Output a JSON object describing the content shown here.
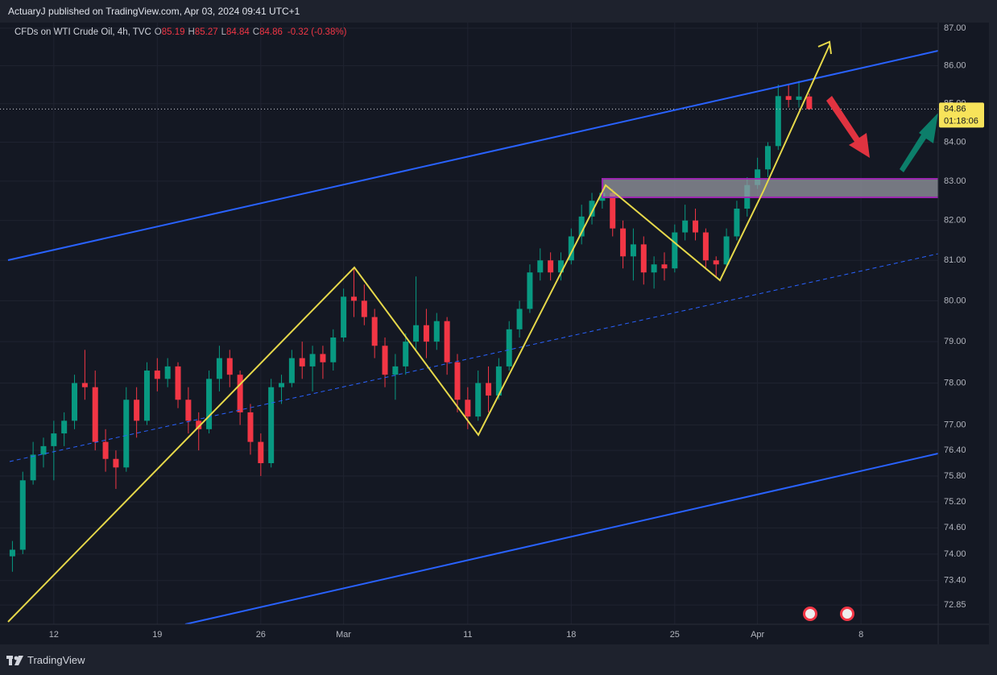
{
  "header": {
    "attribution": "ActuaryJ published on TradingView.com, Apr 03, 2024 09:41 UTC+1"
  },
  "legend": {
    "symbol": "CFDs on WTI Crude Oil, 4h, TVC",
    "ohlc": [
      {
        "key": "O",
        "value": "85.19"
      },
      {
        "key": "H",
        "value": "85.27"
      },
      {
        "key": "L",
        "value": "84.84"
      },
      {
        "key": "C",
        "value": "84.86"
      }
    ],
    "change": "-0.32 (-0.38%)"
  },
  "chart_data": {
    "type": "candlestick",
    "log": true,
    "up_color": "#089981",
    "down_color": "#f23645",
    "ylim": [
      72.42,
      87.15
    ],
    "yticks": [
      {
        "value": 87,
        "label": "87.00"
      },
      {
        "value": 86,
        "label": "86.00"
      },
      {
        "value": 85,
        "label": "85.00"
      },
      {
        "value": 84,
        "label": "84.00"
      },
      {
        "value": 83,
        "label": "83.00"
      },
      {
        "value": 82,
        "label": "82.00"
      },
      {
        "value": 81,
        "label": "81.00"
      },
      {
        "value": 80,
        "label": "80.00"
      },
      {
        "value": 79,
        "label": "79.00"
      },
      {
        "value": 78,
        "label": "78.00"
      },
      {
        "value": 77,
        "label": "77.00"
      },
      {
        "value": 76.4,
        "label": "76.40"
      },
      {
        "value": 75.8,
        "label": "75.80"
      },
      {
        "value": 75.2,
        "label": "75.20"
      },
      {
        "value": 74.6,
        "label": "74.60"
      },
      {
        "value": 74,
        "label": "74.00"
      },
      {
        "value": 73.4,
        "label": "73.40"
      },
      {
        "value": 72.85,
        "label": "72.85"
      }
    ],
    "categories": [
      null,
      null,
      null,
      null,
      "12",
      null,
      null,
      null,
      null,
      null,
      null,
      null,
      null,
      null,
      "19",
      null,
      null,
      null,
      null,
      null,
      null,
      null,
      null,
      null,
      "26",
      null,
      null,
      null,
      null,
      null,
      null,
      null,
      "Mar",
      null,
      null,
      null,
      null,
      null,
      null,
      null,
      null,
      null,
      null,
      null,
      "11",
      null,
      null,
      null,
      null,
      null,
      null,
      null,
      null,
      null,
      "18",
      null,
      null,
      null,
      null,
      null,
      null,
      null,
      null,
      null,
      "25",
      null,
      null,
      null,
      null,
      null,
      null,
      null,
      "Apr",
      null,
      null,
      null,
      null,
      null,
      null,
      null,
      null,
      null,
      "8",
      null,
      null,
      null,
      null,
      null,
      null
    ],
    "open": [
      73.95,
      74.1,
      75.7,
      76.3,
      76.5,
      76.8,
      77.1,
      78.0,
      77.9,
      76.6,
      76.2,
      76.0,
      77.6,
      77.1,
      78.3,
      78.1,
      78.4,
      77.6,
      77.1,
      76.9,
      78.1,
      78.6,
      78.2,
      77.3,
      76.6,
      76.1,
      77.9,
      78.0,
      78.6,
      78.4,
      78.7,
      78.5,
      79.1,
      80.1,
      80.0,
      79.6,
      78.9,
      78.2,
      78.4,
      79.0,
      79.4,
      79.0,
      79.5,
      78.5,
      77.6,
      77.2,
      78.0,
      77.7,
      78.4,
      79.3,
      79.8,
      80.7,
      81.0,
      80.7,
      81.0,
      81.6,
      82.1,
      82.5,
      82.7,
      81.8,
      81.1,
      81.4,
      80.7,
      80.9,
      80.8,
      81.7,
      82.0,
      81.7,
      81.0,
      80.9,
      81.6,
      82.3,
      82.9,
      83.3,
      83.9,
      85.2,
      85.1,
      85.19,
      null,
      null,
      null,
      null,
      null,
      null,
      null,
      null,
      null,
      null,
      null
    ],
    "high": [
      74.3,
      75.9,
      76.6,
      76.7,
      77.1,
      77.3,
      78.2,
      78.8,
      78.3,
      76.9,
      76.4,
      77.9,
      77.9,
      78.5,
      78.6,
      78.6,
      78.5,
      77.9,
      77.3,
      78.3,
      78.9,
      78.8,
      78.3,
      77.5,
      76.8,
      78.1,
      78.2,
      78.8,
      79.0,
      78.9,
      78.9,
      79.3,
      80.3,
      80.8,
      80.4,
      79.8,
      79.1,
      78.7,
      79.2,
      80.6,
      79.8,
      79.7,
      79.6,
      78.7,
      77.9,
      78.3,
      78.4,
      78.6,
      79.5,
      80.0,
      80.9,
      81.3,
      81.2,
      81.2,
      81.8,
      82.4,
      82.7,
      83.0,
      82.8,
      82.0,
      81.8,
      81.6,
      81.1,
      81.2,
      81.9,
      82.4,
      82.3,
      81.8,
      81.1,
      81.8,
      82.5,
      83.1,
      83.6,
      84.0,
      85.5,
      85.5,
      85.6,
      85.27,
      null,
      null,
      null,
      null,
      null,
      null,
      null,
      null,
      null,
      null,
      null
    ],
    "low": [
      73.6,
      74.0,
      75.6,
      76.0,
      75.7,
      76.5,
      76.9,
      77.6,
      76.4,
      75.9,
      75.5,
      75.9,
      76.7,
      77.0,
      77.8,
      77.9,
      77.4,
      76.8,
      76.4,
      76.8,
      77.8,
      77.9,
      77.0,
      76.3,
      75.8,
      76.0,
      77.5,
      77.9,
      78.1,
      77.8,
      78.1,
      78.3,
      79.0,
      79.6,
      79.4,
      78.6,
      77.9,
      77.6,
      78.2,
      78.8,
      78.6,
      78.8,
      78.2,
      77.3,
      76.9,
      77.1,
      77.3,
      77.6,
      78.3,
      79.1,
      79.7,
      80.5,
      80.5,
      80.5,
      80.9,
      81.4,
      81.9,
      82.3,
      81.6,
      80.8,
      80.5,
      80.4,
      80.3,
      80.5,
      80.7,
      81.5,
      81.5,
      80.8,
      80.6,
      80.8,
      81.5,
      82.1,
      82.8,
      83.1,
      83.8,
      84.9,
      84.9,
      84.84,
      null,
      null,
      null,
      null,
      null,
      null,
      null,
      null,
      null,
      null,
      null
    ],
    "close": [
      74.1,
      75.7,
      76.3,
      76.5,
      76.8,
      77.1,
      78.0,
      77.9,
      76.6,
      76.2,
      76.0,
      77.6,
      77.1,
      78.3,
      78.1,
      78.4,
      77.6,
      77.1,
      76.9,
      78.1,
      78.6,
      78.2,
      77.3,
      76.6,
      76.1,
      77.9,
      78.0,
      78.6,
      78.4,
      78.7,
      78.5,
      79.1,
      80.1,
      80.0,
      79.6,
      78.9,
      78.2,
      78.4,
      79.0,
      79.4,
      79.0,
      79.5,
      78.5,
      77.6,
      77.2,
      78.0,
      77.7,
      78.4,
      79.3,
      79.8,
      80.7,
      81.0,
      80.7,
      81.0,
      81.6,
      82.1,
      82.5,
      82.7,
      81.8,
      81.1,
      81.4,
      80.7,
      80.9,
      80.8,
      81.7,
      82.0,
      81.7,
      81.0,
      80.9,
      81.6,
      82.3,
      82.9,
      83.3,
      83.9,
      85.2,
      85.1,
      85.19,
      84.86,
      null,
      null,
      null,
      null,
      null,
      null,
      null,
      null,
      null,
      null,
      null
    ]
  },
  "price_tag": {
    "price": "84.86",
    "countdown": "01:18:06"
  },
  "footer": {
    "brand": "TradingView"
  }
}
